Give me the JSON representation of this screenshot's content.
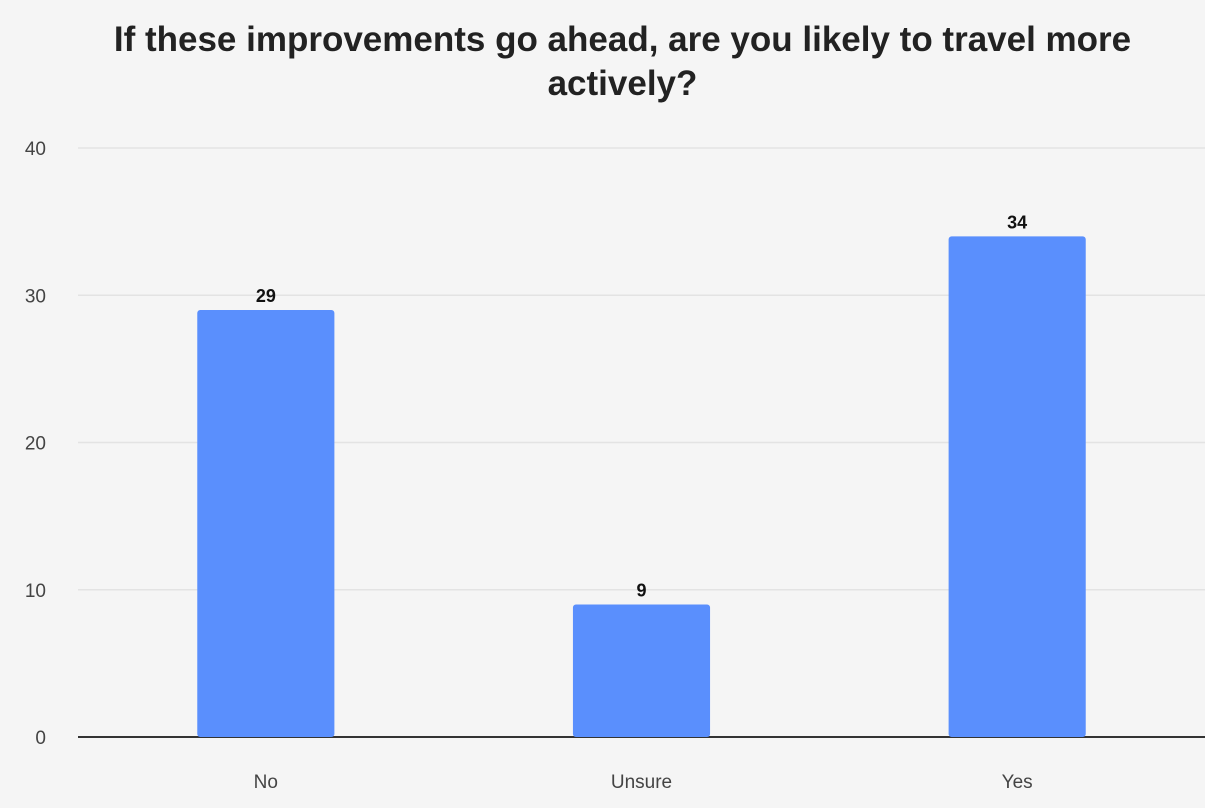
{
  "chart_data": {
    "type": "bar",
    "title": "If these improvements go ahead, are you likely to travel more actively?",
    "categories": [
      "No",
      "Unsure",
      "Yes"
    ],
    "values": [
      29,
      9,
      34
    ],
    "xlabel": "",
    "ylabel": "",
    "ylim": [
      0,
      40
    ],
    "yticks": [
      0,
      10,
      20,
      30,
      40
    ],
    "grid": true,
    "legend": "none",
    "bar_color": "#5a8ffd",
    "gridline_color": "#e3e3e3",
    "axis_color": "#333333",
    "background_color": "#f5f5f5"
  }
}
